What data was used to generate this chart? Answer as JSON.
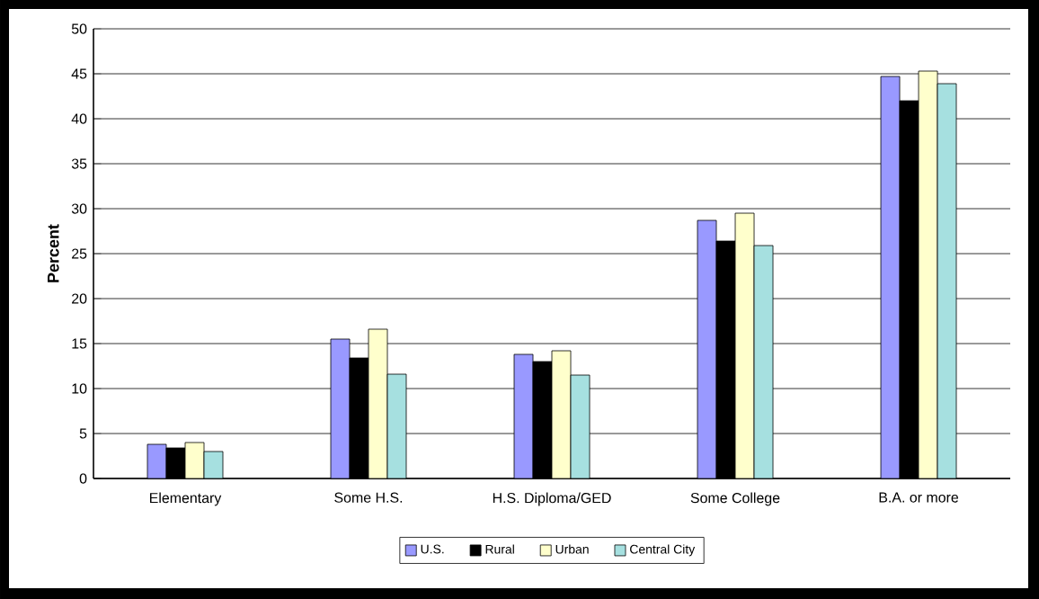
{
  "chart_data": {
    "type": "bar",
    "ylabel": "Percent",
    "categories": [
      "Elementary",
      "Some H.S.",
      "H.S. Diploma/GED",
      "Some College",
      "B.A. or more"
    ],
    "series": [
      {
        "name": "U.S.",
        "color": "#9999ff",
        "values": [
          3.8,
          15.5,
          13.8,
          28.7,
          44.7
        ]
      },
      {
        "name": "Rural",
        "color": "#000000",
        "values": [
          3.4,
          13.4,
          13.0,
          26.4,
          42.0
        ]
      },
      {
        "name": "Urban",
        "color": "#ffffcc",
        "values": [
          4.0,
          16.6,
          14.2,
          29.5,
          45.3
        ]
      },
      {
        "name": "Central City",
        "color": "#a6e0e0",
        "values": [
          3.0,
          11.6,
          11.5,
          25.9,
          43.9
        ]
      }
    ],
    "ylim": [
      0,
      50
    ],
    "yticks": [
      0,
      5,
      10,
      15,
      20,
      25,
      30,
      35,
      40,
      45,
      50
    ],
    "grid": "y",
    "legend": "bottom"
  }
}
